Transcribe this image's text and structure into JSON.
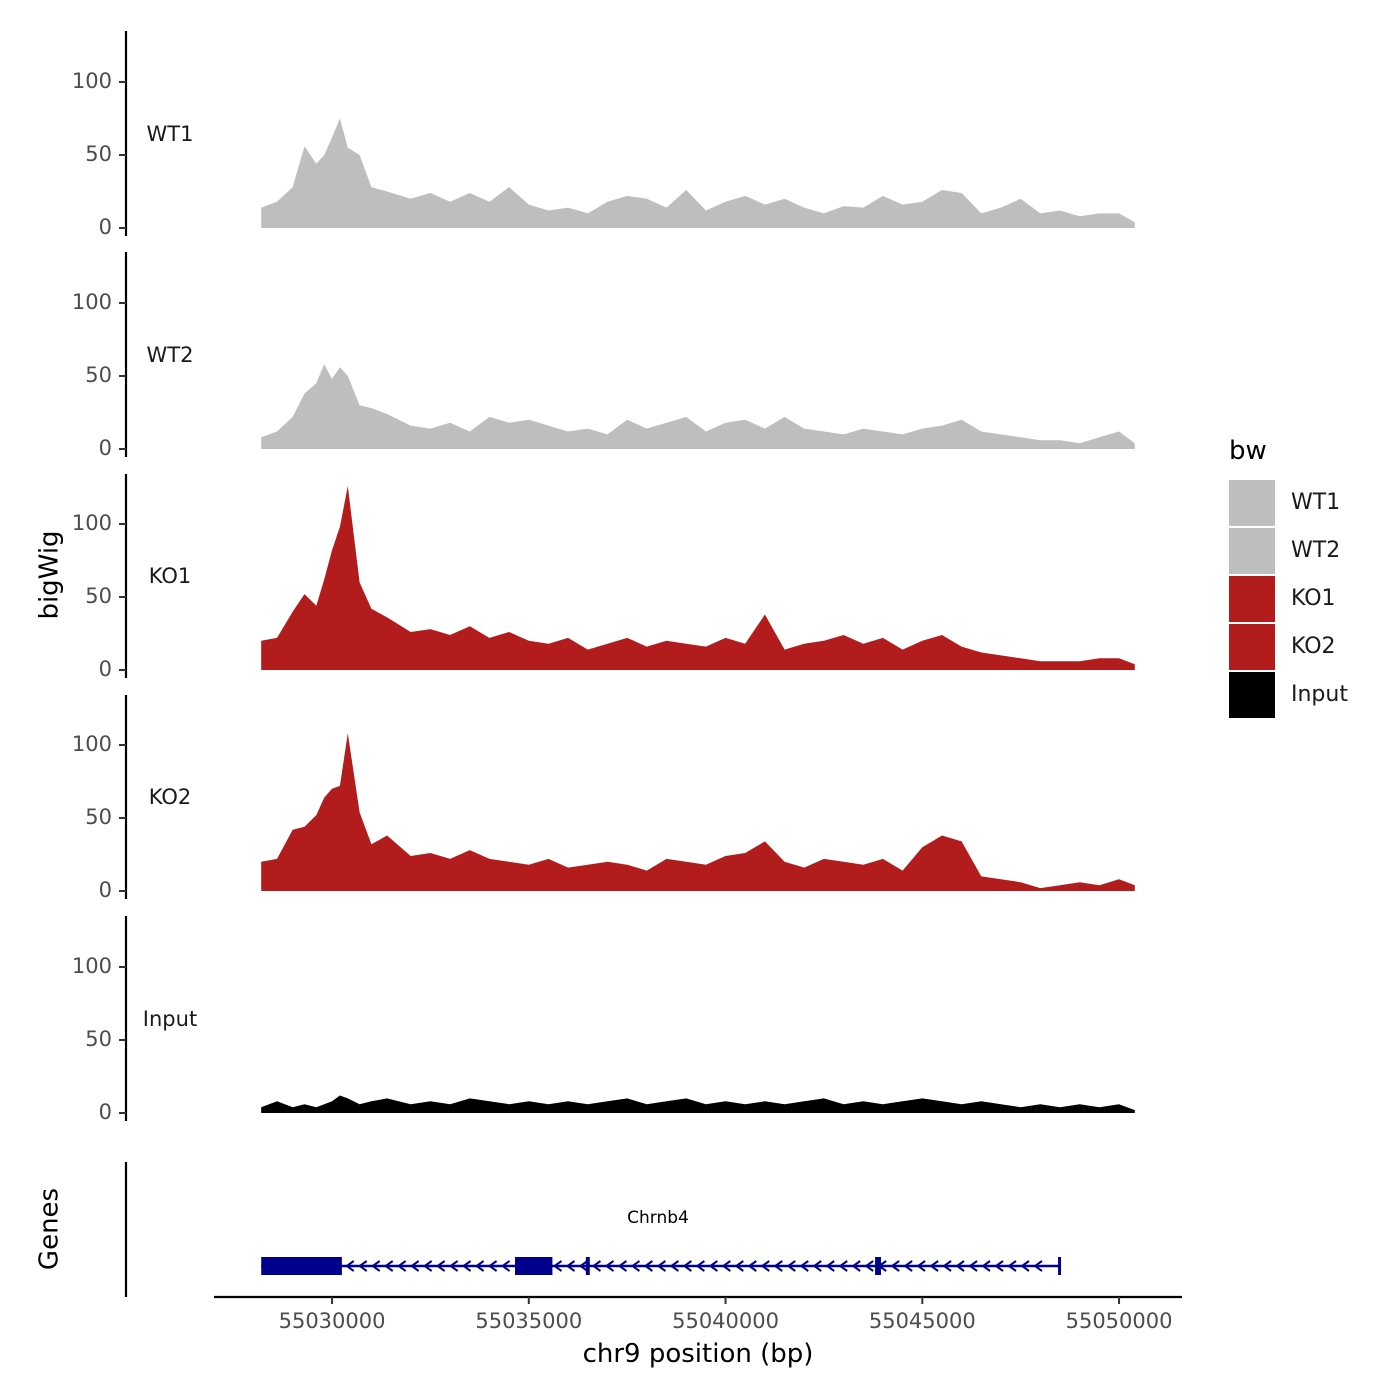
{
  "chart_data": {
    "type": "area",
    "xlabel": "chr9 position (bp)",
    "xlim": [
      55027000,
      55051600
    ],
    "x_ticks": [
      55030000,
      55035000,
      55040000,
      55045000,
      55050000
    ],
    "x_tick_labels": [
      "55030000",
      "55035000",
      "55040000",
      "55045000",
      "55050000"
    ],
    "ylabel": "bigWig",
    "ylim": [
      0,
      135
    ],
    "y_ticks": [
      0,
      50,
      100
    ],
    "y_tick_labels": [
      "0",
      "50",
      "100"
    ],
    "legend": {
      "title": "bw",
      "position": "right",
      "entries": [
        {
          "name": "WT1",
          "color": "#bebebe"
        },
        {
          "name": "WT2",
          "color": "#bebebe"
        },
        {
          "name": "KO1",
          "color": "#b21c1c"
        },
        {
          "name": "KO2",
          "color": "#b21c1c"
        },
        {
          "name": "Input",
          "color": "#000000"
        }
      ]
    },
    "series": [
      {
        "name": "WT1",
        "color": "#bebebe",
        "x": [
          55028200,
          55028600,
          55029000,
          55029300,
          55029600,
          55029800,
          55030000,
          55030200,
          55030400,
          55030700,
          55031000,
          55031400,
          55032000,
          55032500,
          55033000,
          55033500,
          55034000,
          55034500,
          55035000,
          55035500,
          55036000,
          55036500,
          55037000,
          55037500,
          55038000,
          55038500,
          55039000,
          55039500,
          55040000,
          55040500,
          55041000,
          55041500,
          55042000,
          55042500,
          55043000,
          55043500,
          55044000,
          55044500,
          55045000,
          55045500,
          55046000,
          55046500,
          55047000,
          55047500,
          55048000,
          55048500,
          55049000,
          55049500,
          55050000,
          55050400
        ],
        "values": [
          14,
          18,
          28,
          56,
          44,
          50,
          62,
          75,
          55,
          50,
          28,
          25,
          20,
          24,
          18,
          24,
          18,
          28,
          16,
          12,
          14,
          10,
          18,
          22,
          20,
          14,
          26,
          12,
          18,
          22,
          16,
          20,
          14,
          10,
          15,
          14,
          22,
          16,
          18,
          26,
          24,
          10,
          14,
          20,
          10,
          12,
          8,
          10,
          10,
          4
        ]
      },
      {
        "name": "WT2",
        "color": "#bebebe",
        "x": [
          55028200,
          55028600,
          55029000,
          55029300,
          55029600,
          55029800,
          55030000,
          55030200,
          55030400,
          55030700,
          55031000,
          55031400,
          55032000,
          55032500,
          55033000,
          55033500,
          55034000,
          55034500,
          55035000,
          55035500,
          55036000,
          55036500,
          55037000,
          55037500,
          55038000,
          55038500,
          55039000,
          55039500,
          55040000,
          55040500,
          55041000,
          55041500,
          55042000,
          55042500,
          55043000,
          55043500,
          55044000,
          55044500,
          55045000,
          55045500,
          55046000,
          55046500,
          55047000,
          55047500,
          55048000,
          55048500,
          55049000,
          55049500,
          55050000,
          55050400
        ],
        "values": [
          8,
          12,
          22,
          38,
          45,
          58,
          48,
          56,
          50,
          30,
          28,
          24,
          16,
          14,
          18,
          12,
          22,
          18,
          20,
          16,
          12,
          14,
          10,
          20,
          14,
          18,
          22,
          12,
          18,
          20,
          14,
          22,
          14,
          12,
          10,
          14,
          12,
          10,
          14,
          16,
          20,
          12,
          10,
          8,
          6,
          6,
          4,
          8,
          12,
          4
        ]
      },
      {
        "name": "KO1",
        "color": "#b21c1c",
        "x": [
          55028200,
          55028600,
          55029000,
          55029300,
          55029600,
          55029800,
          55030000,
          55030200,
          55030400,
          55030700,
          55031000,
          55031400,
          55032000,
          55032500,
          55033000,
          55033500,
          55034000,
          55034500,
          55035000,
          55035500,
          55036000,
          55036500,
          55037000,
          55037500,
          55038000,
          55038500,
          55039000,
          55039500,
          55040000,
          55040500,
          55041000,
          55041500,
          55042000,
          55042500,
          55043000,
          55043500,
          55044000,
          55044500,
          55045000,
          55045500,
          55046000,
          55046500,
          55047000,
          55047500,
          55048000,
          55048500,
          55049000,
          55049500,
          55050000,
          55050400
        ],
        "values": [
          20,
          22,
          40,
          52,
          44,
          62,
          82,
          98,
          126,
          60,
          42,
          36,
          26,
          28,
          24,
          30,
          22,
          26,
          20,
          18,
          22,
          14,
          18,
          22,
          16,
          20,
          18,
          16,
          22,
          18,
          38,
          14,
          18,
          20,
          24,
          18,
          22,
          14,
          20,
          24,
          16,
          12,
          10,
          8,
          6,
          6,
          6,
          8,
          8,
          4
        ]
      },
      {
        "name": "KO2",
        "color": "#b21c1c",
        "x": [
          55028200,
          55028600,
          55029000,
          55029300,
          55029600,
          55029800,
          55030000,
          55030200,
          55030400,
          55030700,
          55031000,
          55031400,
          55032000,
          55032500,
          55033000,
          55033500,
          55034000,
          55034500,
          55035000,
          55035500,
          55036000,
          55036500,
          55037000,
          55037500,
          55038000,
          55038500,
          55039000,
          55039500,
          55040000,
          55040500,
          55041000,
          55041500,
          55042000,
          55042500,
          55043000,
          55043500,
          55044000,
          55044500,
          55045000,
          55045500,
          55046000,
          55046500,
          55047000,
          55047500,
          55048000,
          55048500,
          55049000,
          55049500,
          55050000,
          55050400
        ],
        "values": [
          20,
          22,
          42,
          44,
          52,
          64,
          70,
          72,
          108,
          54,
          32,
          38,
          24,
          26,
          22,
          28,
          22,
          20,
          18,
          22,
          16,
          18,
          20,
          18,
          14,
          22,
          20,
          18,
          24,
          26,
          34,
          20,
          16,
          22,
          20,
          18,
          22,
          14,
          30,
          38,
          34,
          10,
          8,
          6,
          2,
          4,
          6,
          4,
          8,
          4
        ]
      },
      {
        "name": "Input",
        "color": "#000000",
        "x": [
          55028200,
          55028600,
          55029000,
          55029300,
          55029600,
          55029800,
          55030000,
          55030200,
          55030400,
          55030700,
          55031000,
          55031400,
          55032000,
          55032500,
          55033000,
          55033500,
          55034000,
          55034500,
          55035000,
          55035500,
          55036000,
          55036500,
          55037000,
          55037500,
          55038000,
          55038500,
          55039000,
          55039500,
          55040000,
          55040500,
          55041000,
          55041500,
          55042000,
          55042500,
          55043000,
          55043500,
          55044000,
          55044500,
          55045000,
          55045500,
          55046000,
          55046500,
          55047000,
          55047500,
          55048000,
          55048500,
          55049000,
          55049500,
          55050000,
          55050400
        ],
        "values": [
          4,
          8,
          4,
          6,
          4,
          6,
          8,
          12,
          10,
          6,
          8,
          10,
          6,
          8,
          6,
          10,
          8,
          6,
          8,
          6,
          8,
          6,
          8,
          10,
          6,
          8,
          10,
          6,
          8,
          6,
          8,
          6,
          8,
          10,
          6,
          8,
          6,
          8,
          10,
          8,
          6,
          8,
          6,
          4,
          6,
          4,
          6,
          4,
          6,
          2
        ]
      }
    ],
    "genes_track": {
      "label": "Genes",
      "gene_name": "Chrnb4",
      "strand": "-",
      "start": 55028200,
      "end": 55048500,
      "exons": [
        {
          "start": 55028200,
          "end": 55030250
        },
        {
          "start": 55034650,
          "end": 55035600
        },
        {
          "start": 55036450,
          "end": 55036550
        },
        {
          "start": 55043800,
          "end": 55043950
        },
        {
          "start": 55048450,
          "end": 55048500
        }
      ],
      "color": "#00008b"
    }
  }
}
